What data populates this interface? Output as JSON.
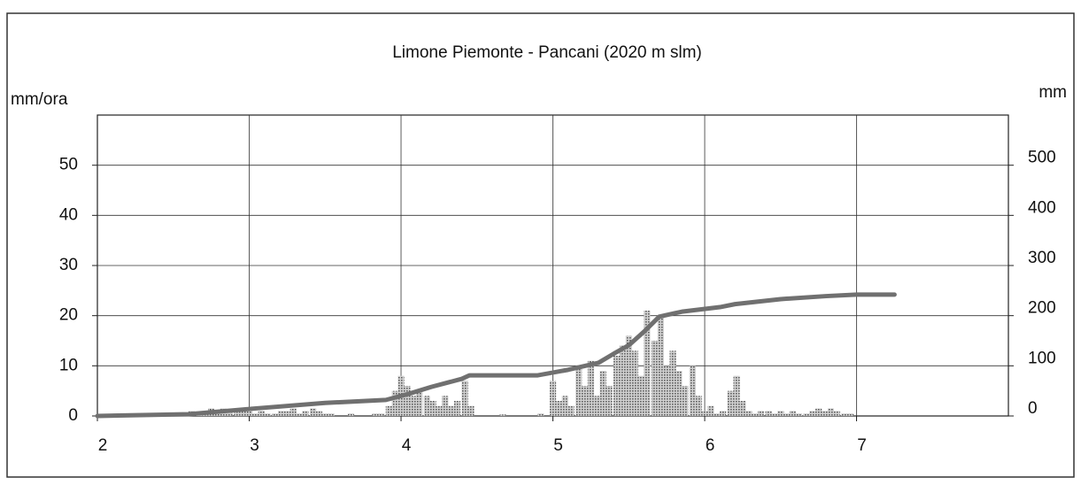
{
  "chart_data": {
    "type": "bar",
    "title": "Limone Piemonte - Pancani (2020 m slm)",
    "ylabel": "mm/ora",
    "y2label": "mm",
    "xlim": [
      2,
      8
    ],
    "xticks": [
      2,
      3,
      4,
      5,
      6,
      7
    ],
    "ylim": [
      0,
      60
    ],
    "yticks": [
      0,
      10,
      20,
      30,
      40,
      50
    ],
    "y2lim": [
      0,
      600
    ],
    "y2ticks": [
      0,
      100,
      200,
      300,
      400,
      500
    ],
    "grid": true,
    "series": [
      {
        "type": "bar",
        "color": "#8a8a8a",
        "x": [
          2.62,
          2.67,
          2.71,
          2.75,
          2.79,
          2.83,
          2.87,
          2.92,
          2.96,
          3.0,
          3.04,
          3.08,
          3.12,
          3.17,
          3.21,
          3.25,
          3.29,
          3.33,
          3.37,
          3.42,
          3.46,
          3.5,
          3.54,
          3.58,
          3.62,
          3.67,
          3.71,
          3.75,
          3.79,
          3.83,
          3.87,
          3.92,
          3.96,
          4.0,
          4.04,
          4.08,
          4.12,
          4.17,
          4.21,
          4.25,
          4.29,
          4.33,
          4.37,
          4.42,
          4.46,
          4.67,
          4.92,
          5.0,
          5.04,
          5.08,
          5.12,
          5.17,
          5.21,
          5.25,
          5.29,
          5.33,
          5.37,
          5.42,
          5.46,
          5.5,
          5.54,
          5.58,
          5.62,
          5.67,
          5.71,
          5.75,
          5.79,
          5.83,
          5.87,
          5.92,
          5.96,
          6.0,
          6.04,
          6.08,
          6.12,
          6.17,
          6.21,
          6.25,
          6.29,
          6.33,
          6.37,
          6.42,
          6.46,
          6.5,
          6.54,
          6.58,
          6.62,
          6.67,
          6.71,
          6.75,
          6.79,
          6.83,
          6.87,
          6.92,
          6.96
        ],
        "values": [
          1,
          0.5,
          1,
          1.5,
          1,
          1.5,
          1,
          1,
          1.5,
          1,
          0.5,
          1,
          0.5,
          0.5,
          1,
          1,
          1.5,
          0.5,
          1,
          1.5,
          1,
          0.5,
          0.5,
          0,
          0,
          0.5,
          0,
          0,
          0,
          0.5,
          0.5,
          2,
          5,
          8,
          6,
          4,
          5,
          4,
          3,
          2,
          4,
          2,
          3,
          7,
          2,
          0.3,
          0.5,
          7,
          3,
          4,
          2,
          10,
          6,
          11,
          4,
          9,
          6,
          12,
          14,
          16,
          13,
          8,
          21,
          15,
          20,
          10,
          13,
          9,
          6,
          10,
          4,
          1,
          2,
          0.5,
          1,
          5,
          8,
          3,
          1,
          0.5,
          1,
          1,
          0.5,
          1,
          0.5,
          1,
          0.5,
          0.5,
          1,
          1.5,
          1,
          1.5,
          1,
          0.5,
          0.5
        ]
      },
      {
        "type": "line",
        "axis": "y2",
        "color": "#707070",
        "x": [
          2,
          2.6,
          3,
          3.5,
          3.9,
          4.05,
          4.2,
          4.4,
          4.45,
          4.9,
          5.1,
          5.3,
          5.4,
          5.5,
          5.6,
          5.7,
          5.85,
          6.1,
          6.2,
          6.5,
          6.8,
          7,
          7.25
        ],
        "values": [
          0,
          3.5,
          14,
          26,
          32,
          44,
          58,
          74,
          81,
          81,
          92,
          106,
          124,
          141,
          168,
          198,
          208,
          217,
          223,
          233,
          239,
          242,
          242
        ]
      }
    ]
  }
}
